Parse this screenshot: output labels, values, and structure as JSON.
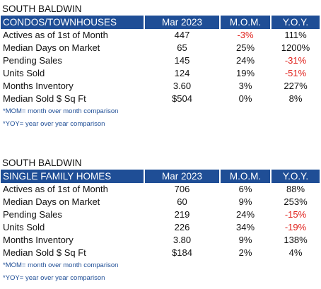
{
  "sections": [
    {
      "region": "SOUTH BALDWIN",
      "category": "CONDOS/TOWNHOUSES",
      "columns": [
        "Mar 2023",
        "M.O.M.",
        "Y.O.Y."
      ],
      "rows": [
        {
          "label": "Actives as of 1st of Month",
          "current": "447",
          "mom": "-3%",
          "yoy": "111%"
        },
        {
          "label": "Median Days on Market",
          "current": "65",
          "mom": "25%",
          "yoy": "1200%"
        },
        {
          "label": "Pending Sales",
          "current": "145",
          "mom": "24%",
          "yoy": "-31%"
        },
        {
          "label": "Units Sold",
          "current": "124",
          "mom": "19%",
          "yoy": "-51%"
        },
        {
          "label": "Months Inventory",
          "current": "3.60",
          "mom": "3%",
          "yoy": "227%"
        },
        {
          "label": "Median Sold $ Sq Ft",
          "current": "$504",
          "mom": "0%",
          "yoy": "8%"
        }
      ],
      "notes": [
        "*MOM= month over month comparison",
        "*YOY= year over year comparison"
      ]
    },
    {
      "region": "SOUTH BALDWIN",
      "category": "SINGLE FAMILY HOMES",
      "columns": [
        "Mar 2023",
        "M.O.M.",
        "Y.O.Y."
      ],
      "rows": [
        {
          "label": "Actives as of 1st of Month",
          "current": "706",
          "mom": "6%",
          "yoy": "88%"
        },
        {
          "label": "Median Days on Market",
          "current": "60",
          "mom": "9%",
          "yoy": "253%"
        },
        {
          "label": "Pending Sales",
          "current": "219",
          "mom": "24%",
          "yoy": "-15%"
        },
        {
          "label": "Units Sold",
          "current": "226",
          "mom": "34%",
          "yoy": "-19%"
        },
        {
          "label": "Months Inventory",
          "current": "3.80",
          "mom": "9%",
          "yoy": "138%"
        },
        {
          "label": "Median Sold $ Sq Ft",
          "current": "$184",
          "mom": "2%",
          "yoy": "4%"
        }
      ],
      "notes": [
        "*MOM= month over month comparison",
        "*YOY= year over year comparison"
      ]
    }
  ],
  "colors": {
    "header_bg": "#1f4e96",
    "header_text": "#ffffff",
    "negative": "#e0211b",
    "note_text": "#1f4e96"
  }
}
